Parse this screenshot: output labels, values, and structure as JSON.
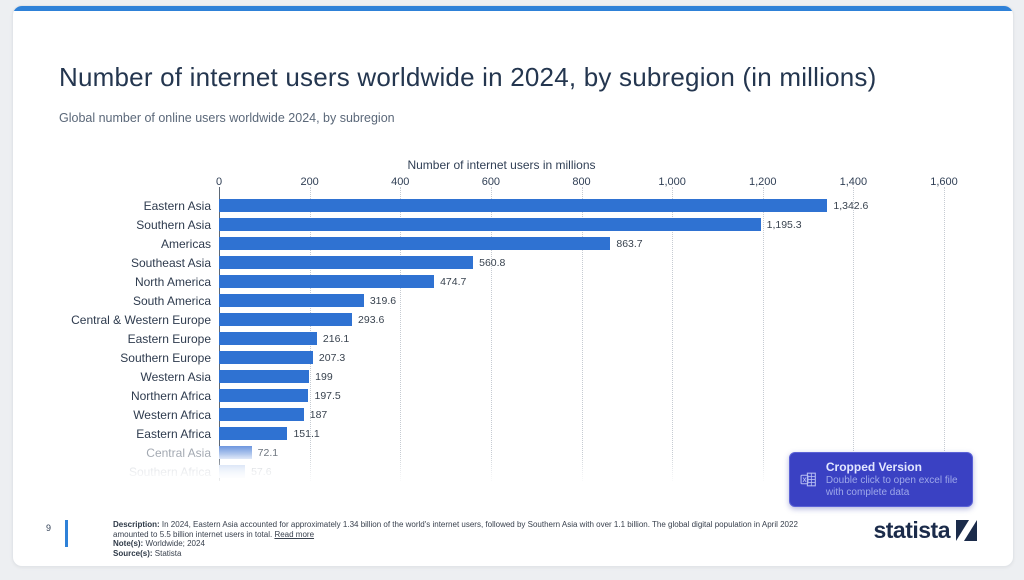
{
  "page": {
    "background_color": "#edeff2",
    "card_color": "#ffffff",
    "accent_color": "#2e81d8"
  },
  "header": {
    "title": "Number of internet users worldwide in 2024, by subregion (in millions)",
    "subtitle": "Global number of online users worldwide 2024, by subregion"
  },
  "chart_data": {
    "type": "bar",
    "orientation": "horizontal",
    "title": "Number of internet users in millions",
    "categories": [
      "Eastern Asia",
      "Southern Asia",
      "Americas",
      "Southeast Asia",
      "North America",
      "South America",
      "Central & Western Europe",
      "Eastern Europe",
      "Southern Europe",
      "Western Asia",
      "Northern Africa",
      "Western Africa",
      "Eastern Africa",
      "Central Asia",
      "Southern Africa"
    ],
    "values": [
      1342.6,
      1195.3,
      863.7,
      560.8,
      474.7,
      319.6,
      293.6,
      216.1,
      207.3,
      199,
      197.5,
      187,
      151.1,
      72.1,
      57.6
    ],
    "value_labels": [
      "1,342.6",
      "1,195.3",
      "863.7",
      "560.8",
      "474.7",
      "319.6",
      "293.6",
      "216.1",
      "207.3",
      "199",
      "197.5",
      "187",
      "151.1",
      "72.1",
      "57.6"
    ],
    "xlim": [
      0,
      1600
    ],
    "ticks": [
      "0",
      "200",
      "400",
      "600",
      "800",
      "1,000",
      "1,200",
      "1,400",
      "1,600"
    ],
    "bar_color": "#2f72d2",
    "grid": "vertical-dotted",
    "faded_rows": [
      "Central Asia",
      "Southern Africa"
    ],
    "legend": "none"
  },
  "overlay": {
    "title": "Cropped Version",
    "subtitle": "Double click to open excel file with complete data",
    "icon": "excel-icon",
    "background_color": "#3a41c3"
  },
  "footer": {
    "page_number": "9",
    "description_label": "Description:",
    "description": "In 2024, Eastern Asia accounted for approximately 1.34 billion of the world's internet users, followed by Southern Asia with over 1.1 billion. The global digital population in April 2022 amounted to 5.5 billion internet users in total.",
    "read_more": "Read more",
    "notes_label": "Note(s):",
    "notes": "Worldwide; 2024",
    "source_label": "Source(s):",
    "source": "Statista",
    "logo_text": "statista"
  }
}
